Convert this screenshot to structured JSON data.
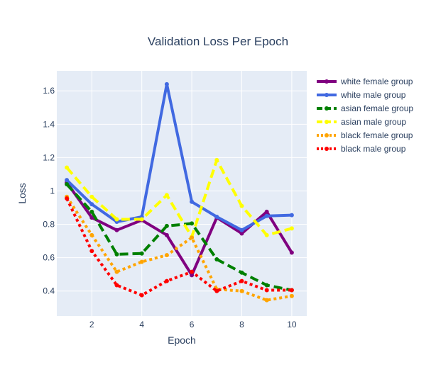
{
  "chart_data": {
    "type": "line",
    "title": "Validation Loss Per Epoch",
    "xlabel": "Epoch",
    "ylabel": "Loss",
    "x": [
      1,
      2,
      3,
      4,
      5,
      6,
      7,
      8,
      9,
      10
    ],
    "xlim": [
      0.6,
      10.6
    ],
    "ylim": [
      0.25,
      1.72
    ],
    "xticks": [
      2,
      4,
      6,
      8,
      10
    ],
    "yticks": [
      0.4,
      0.6,
      0.8,
      1,
      1.2,
      1.4,
      1.6
    ],
    "grid": true,
    "legend_position": "top-right",
    "plot_background": "#e5ecf6",
    "series": [
      {
        "name": "white female group",
        "color": "#800080",
        "dash": "solid",
        "values": [
          1.05,
          0.84,
          0.765,
          0.825,
          0.735,
          0.495,
          0.84,
          0.745,
          0.875,
          0.63
        ]
      },
      {
        "name": "white male group",
        "color": "#4169e1",
        "dash": "solid",
        "values": [
          1.065,
          0.92,
          0.815,
          0.845,
          1.64,
          0.935,
          0.845,
          0.765,
          0.85,
          0.855
        ]
      },
      {
        "name": "asian female group",
        "color": "#008000",
        "dash": "dash",
        "values": [
          1.04,
          0.875,
          0.62,
          0.625,
          0.79,
          0.805,
          0.59,
          0.51,
          0.435,
          0.405
        ]
      },
      {
        "name": "asian male group",
        "color": "#ffff00",
        "dash": "dash",
        "values": [
          1.14,
          0.965,
          0.83,
          0.83,
          0.975,
          0.725,
          1.185,
          0.91,
          0.735,
          0.775
        ]
      },
      {
        "name": "black female group",
        "color": "#ffa500",
        "dash": "dot",
        "values": [
          0.965,
          0.735,
          0.515,
          0.575,
          0.615,
          0.72,
          0.41,
          0.4,
          0.345,
          0.37
        ]
      },
      {
        "name": "black male group",
        "color": "#ff0000",
        "dash": "dot",
        "values": [
          0.955,
          0.64,
          0.435,
          0.375,
          0.46,
          0.515,
          0.4,
          0.46,
          0.405,
          0.405
        ]
      }
    ]
  }
}
